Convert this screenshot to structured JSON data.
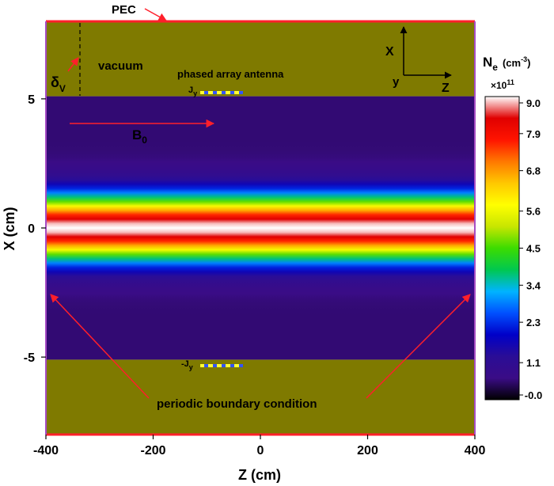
{
  "chart_data": {
    "type": "heatmap",
    "title": "",
    "xlabel": "Z (cm)",
    "ylabel": "X (cm)",
    "xlim": [
      -400,
      400
    ],
    "ylim": [
      -8,
      8
    ],
    "x_ticks": [
      "-400",
      "-200",
      "0",
      "200",
      "400"
    ],
    "x_tick_values": [
      -400,
      -200,
      0,
      200,
      400
    ],
    "y_ticks": [
      "5",
      "0",
      "-5"
    ],
    "y_tick_values": [
      5,
      0,
      -5
    ],
    "plasma_region_x": [
      -5.1,
      5.1
    ],
    "vacuum_color": "#7f7a00",
    "profile": {
      "shape": "gaussian",
      "center_x": 0,
      "peak": 9.0,
      "background": 0.55,
      "width_cm": 1.2
    },
    "colorbar": {
      "title_main": "N",
      "title_sub": "e",
      "units_prefix": "(cm",
      "units_sup": "-3",
      "units_suffix": ")",
      "scale_prefix": "×10",
      "scale_sup": "11",
      "min": 0.0,
      "max": 9.0,
      "ticks": [
        "9.0",
        "7.9",
        "6.8",
        "5.6",
        "4.5",
        "3.4",
        "2.3",
        "1.1",
        "-0.0"
      ],
      "tick_values": [
        9.0,
        7.9,
        6.8,
        5.6,
        4.5,
        3.4,
        2.3,
        1.1,
        0.0
      ],
      "colors": [
        "#000000",
        "#3a0c86",
        "#2a0d96",
        "#0000c8",
        "#0050ff",
        "#00b4ff",
        "#00c850",
        "#3cdc00",
        "#c8e600",
        "#ffff00",
        "#ffc800",
        "#ff7800",
        "#ff1400",
        "#e00000",
        "#ffffff"
      ]
    },
    "annotations": {
      "pec": "PEC",
      "vacuum": "vacuum",
      "delta": "δ",
      "delta_sub": "V",
      "antenna": "phased array antenna",
      "jy_top": "J",
      "jy_top_sub": "y",
      "jy_bottom": "-J",
      "jy_bottom_sub": "y",
      "b0": "B",
      "b0_sub": "0",
      "boundary": "periodic boundary condition",
      "axis_x": "X",
      "axis_y": "y",
      "axis_z": "Z"
    },
    "colors": {
      "pec_line": "#ff1f2a",
      "arrow": "#ff1f2a",
      "side_boundary": "#a64cc4",
      "antenna_yellow": "#ffff33",
      "antenna_blue": "#3355ff"
    }
  }
}
